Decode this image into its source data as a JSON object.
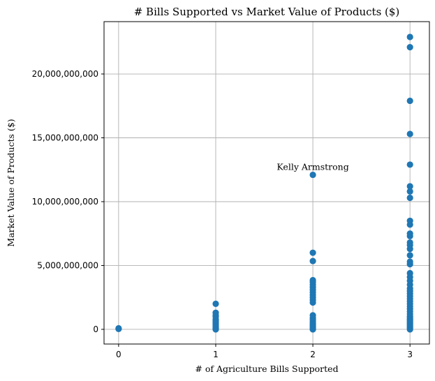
{
  "chart_data": {
    "type": "scatter",
    "title": "# Bills Supported vs Market Value of Products ($)",
    "xlabel": "# of Agriculture Bills Supported",
    "ylabel": "Market Value of Products ($)",
    "xlim": [
      -0.15,
      3.2
    ],
    "ylim": [
      -1150000000,
      24100000000
    ],
    "xticks": [
      0,
      1,
      2,
      3
    ],
    "xtick_labels": [
      "0",
      "1",
      "2",
      "3"
    ],
    "yticks": [
      0,
      5000000000,
      10000000000,
      15000000000,
      20000000000
    ],
    "ytick_labels": [
      "0",
      "5,000,000,000",
      "10,000,000,000",
      "15,000,000,000",
      "20,000,000,000"
    ],
    "grid": true,
    "marker_color": "#1f77b4",
    "series": [
      {
        "points": [
          [
            0,
            30000000
          ],
          [
            0,
            80000000
          ],
          [
            1,
            0
          ],
          [
            1,
            50000000
          ],
          [
            1,
            100000000
          ],
          [
            1,
            200000000
          ],
          [
            1,
            300000000
          ],
          [
            1,
            400000000
          ],
          [
            1,
            500000000
          ],
          [
            1,
            600000000
          ],
          [
            1,
            700000000
          ],
          [
            1,
            800000000
          ],
          [
            1,
            1000000000
          ],
          [
            1,
            1100000000
          ],
          [
            1,
            1300000000
          ],
          [
            1,
            2000000000
          ],
          [
            2,
            0
          ],
          [
            2,
            50000000
          ],
          [
            2,
            150000000
          ],
          [
            2,
            250000000
          ],
          [
            2,
            350000000
          ],
          [
            2,
            450000000
          ],
          [
            2,
            600000000
          ],
          [
            2,
            750000000
          ],
          [
            2,
            900000000
          ],
          [
            2,
            1100000000
          ],
          [
            2,
            2100000000
          ],
          [
            2,
            2300000000
          ],
          [
            2,
            2500000000
          ],
          [
            2,
            2700000000
          ],
          [
            2,
            2900000000
          ],
          [
            2,
            3100000000
          ],
          [
            2,
            3300000000
          ],
          [
            2,
            3500000000
          ],
          [
            2,
            3700000000
          ],
          [
            2,
            3850000000
          ],
          [
            2,
            5350000000
          ],
          [
            2,
            6000000000
          ],
          [
            2,
            12100000000
          ],
          [
            3,
            0
          ],
          [
            3,
            100000000
          ],
          [
            3,
            200000000
          ],
          [
            3,
            300000000
          ],
          [
            3,
            400000000
          ],
          [
            3,
            500000000
          ],
          [
            3,
            600000000
          ],
          [
            3,
            700000000
          ],
          [
            3,
            800000000
          ],
          [
            3,
            900000000
          ],
          [
            3,
            1000000000
          ],
          [
            3,
            1200000000
          ],
          [
            3,
            1400000000
          ],
          [
            3,
            1600000000
          ],
          [
            3,
            1800000000
          ],
          [
            3,
            2000000000
          ],
          [
            3,
            2200000000
          ],
          [
            3,
            2400000000
          ],
          [
            3,
            2600000000
          ],
          [
            3,
            2800000000
          ],
          [
            3,
            3000000000
          ],
          [
            3,
            3200000000
          ],
          [
            3,
            3500000000
          ],
          [
            3,
            3800000000
          ],
          [
            3,
            4100000000
          ],
          [
            3,
            4400000000
          ],
          [
            3,
            5100000000
          ],
          [
            3,
            5300000000
          ],
          [
            3,
            5800000000
          ],
          [
            3,
            6300000000
          ],
          [
            3,
            6600000000
          ],
          [
            3,
            6800000000
          ],
          [
            3,
            7300000000
          ],
          [
            3,
            7500000000
          ],
          [
            3,
            8200000000
          ],
          [
            3,
            8500000000
          ],
          [
            3,
            10300000000
          ],
          [
            3,
            10800000000
          ],
          [
            3,
            11200000000
          ],
          [
            3,
            12900000000
          ],
          [
            3,
            15300000000
          ],
          [
            3,
            17900000000
          ],
          [
            3,
            22100000000
          ],
          [
            3,
            22900000000
          ]
        ]
      }
    ],
    "annotations": [
      {
        "text": "Kelly Armstrong",
        "x": 2,
        "y": 12100000000
      }
    ]
  }
}
